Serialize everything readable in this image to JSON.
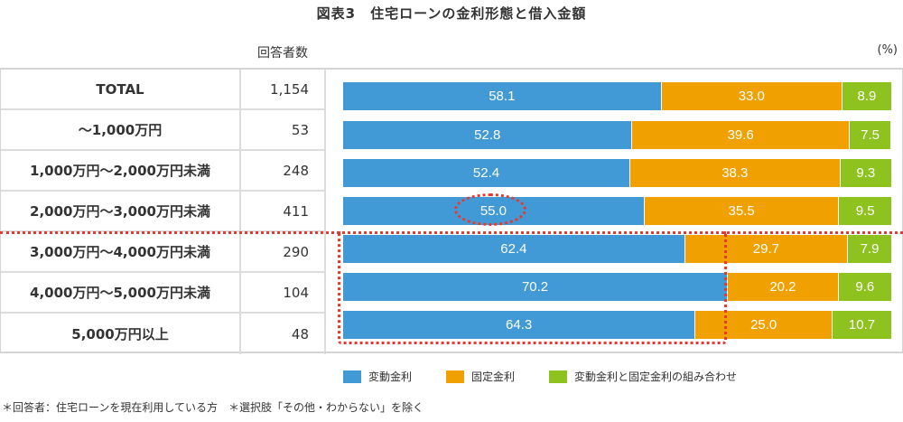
{
  "title": "図表3　住宅ローンの金利形態と借入金額",
  "count_header": "回答者数",
  "unit": "(%)",
  "rows": [
    {
      "label": "TOTAL",
      "count": "1,154",
      "values": [
        "58.1",
        "33.0",
        "8.9"
      ]
    },
    {
      "label": "～1,000万円",
      "count": "53",
      "values": [
        "52.8",
        "39.6",
        "7.5"
      ]
    },
    {
      "label": "1,000万円～2,000万円未満",
      "count": "248",
      "values": [
        "52.4",
        "38.3",
        "9.3"
      ]
    },
    {
      "label": "2,000万円～3,000万円未満",
      "count": "411",
      "values": [
        "55.0",
        "35.5",
        "9.5"
      ]
    },
    {
      "label": "3,000万円～4,000万円未満",
      "count": "290",
      "values": [
        "62.4",
        "29.7",
        "7.9"
      ]
    },
    {
      "label": "4,000万円～5,000万円未満",
      "count": "104",
      "values": [
        "70.2",
        "20.2",
        "9.6"
      ]
    },
    {
      "label": "5,000万円以上",
      "count": "48",
      "values": [
        "64.3",
        "25.0",
        "10.7"
      ]
    }
  ],
  "legend": [
    {
      "label": "変動金利",
      "color": "#4199d6"
    },
    {
      "label": "固定金利",
      "color": "#f0a000"
    },
    {
      "label": "変動金利と固定金利の組み合わせ",
      "color": "#8dc21f"
    }
  ],
  "footnote": "＊回答者：住宅ローンを現在利用している方　＊選択肢「その他・わからない」を除く",
  "colors": {
    "variable": "#4199d6",
    "fixed": "#f0a000",
    "mixed": "#8dc21f",
    "highlight": "#e8392e"
  },
  "chart_data": {
    "type": "bar",
    "orientation": "horizontal",
    "stacked": "percent",
    "title": "図表3　住宅ローンの金利形態と借入金額",
    "xlabel": "",
    "ylabel": "",
    "unit": "%",
    "xlim": [
      0,
      100
    ],
    "grid": false,
    "legend_position": "bottom",
    "categories": [
      "TOTAL",
      "～1,000万円",
      "1,000万円～2,000万円未満",
      "2,000万円～3,000万円未満",
      "3,000万円～4,000万円未満",
      "4,000万円～5,000万円未満",
      "5,000万円以上"
    ],
    "respondents": [
      1154,
      53,
      248,
      411,
      290,
      104,
      48
    ],
    "series": [
      {
        "name": "変動金利",
        "values": [
          58.1,
          52.8,
          52.4,
          55.0,
          62.4,
          70.2,
          64.3
        ]
      },
      {
        "name": "固定金利",
        "values": [
          33.0,
          39.6,
          38.3,
          35.5,
          29.7,
          20.2,
          25.0
        ]
      },
      {
        "name": "変動金利と固定金利の組み合わせ",
        "values": [
          8.9,
          7.5,
          9.3,
          9.5,
          7.9,
          9.6,
          10.7
        ]
      }
    ],
    "annotations": [
      "dotted ellipse around 55.0 (2,000万円～3,000万円未満, 変動金利)",
      "dotted separator line between 2,000万円～3,000万円未満 and 3,000万円～4,000万円未満",
      "dotted box around 変動金利 bars for 3,000万円以上 rows"
    ],
    "footnote": "＊回答者：住宅ローンを現在利用している方　＊選択肢「その他・わからない」を除く"
  }
}
